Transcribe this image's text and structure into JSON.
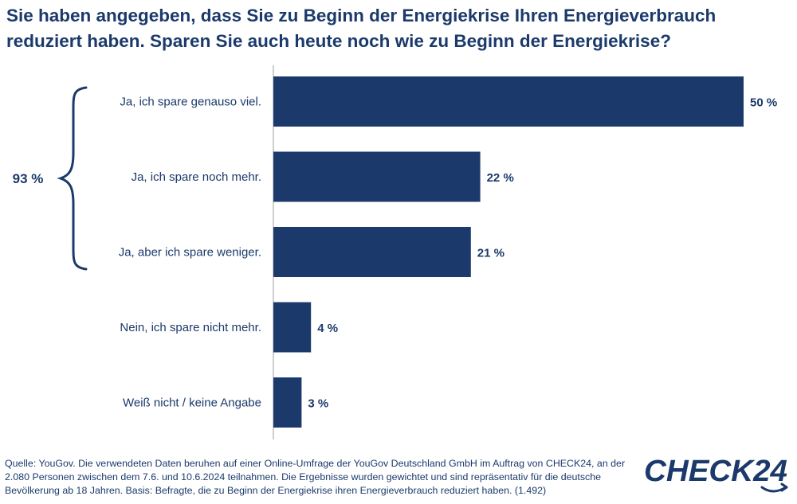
{
  "title": "Sie haben angegeben, dass Sie zu Beginn der Energiekrise Ihren Energieverbrauch reduziert haben. Sparen Sie auch heute noch wie zu Beginn der Energiekrise?",
  "group_label": "93 %",
  "source": "Quelle: YouGov. Die verwendeten Daten beruhen auf einer Online-Umfrage der YouGov Deutschland GmbH im Auftrag von CHECK24, an der 2.080 Personen zwischen dem 7.6. und 10.6.2024 teilnahmen. Die Ergebnisse wurden gewichtet und sind repräsentativ für die deutsche Bevölkerung ab 18 Jahren. Basis: Befragte, die zu Beginn der Energiekrise ihren Energieverbrauch reduziert haben. (1.492)",
  "logo_text": "CHECK24",
  "colors": {
    "bar": "#1b3a6b",
    "text": "#1b3a6b",
    "axis": "#bfbfbf"
  },
  "chart_data": {
    "type": "bar",
    "orientation": "horizontal",
    "categories": [
      "Ja, ich spare genauso viel.",
      "Ja, ich spare noch mehr.",
      "Ja, aber ich spare weniger.",
      "Nein, ich spare nicht mehr.",
      "Weiß nicht / keine Angabe"
    ],
    "values": [
      50,
      22,
      21,
      4,
      3
    ],
    "value_labels": [
      "50 %",
      "22 %",
      "21 %",
      "4 %",
      "3 %"
    ],
    "xlim": [
      0,
      50
    ],
    "grid": false
  }
}
